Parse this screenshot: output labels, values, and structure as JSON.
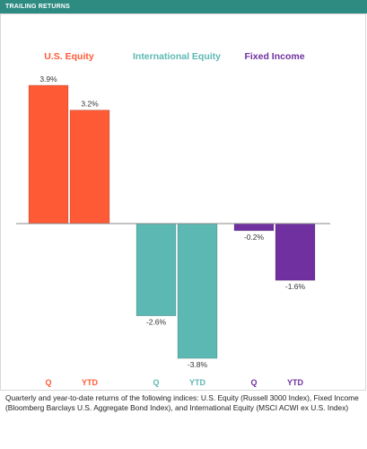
{
  "header": {
    "title": "TRAILING RETURNS"
  },
  "colors": {
    "us_equity": "#ff5a36",
    "international_equity": "#5cb8b2",
    "fixed_income": "#7030a0",
    "header_bg": "#2e8b82",
    "axis": "#888888"
  },
  "chart_data": {
    "type": "bar",
    "groups": [
      {
        "name": "U.S. Equity",
        "color": "#ff5a36",
        "categories": [
          "Q",
          "YTD"
        ],
        "values": [
          3.9,
          3.2
        ],
        "labels": [
          "3.9%",
          "3.2%"
        ]
      },
      {
        "name": "International Equity",
        "color": "#5cb8b2",
        "categories": [
          "Q",
          "YTD"
        ],
        "values": [
          -2.6,
          -3.8
        ],
        "labels": [
          "-2.6%",
          "-3.8%"
        ]
      },
      {
        "name": "Fixed Income",
        "color": "#7030a0",
        "categories": [
          "Q",
          "YTD"
        ],
        "values": [
          -0.2,
          -1.6
        ],
        "labels": [
          "-0.2%",
          "-1.6%"
        ]
      }
    ],
    "ylim": [
      -4.2,
      4.2
    ],
    "grid": false
  },
  "caption": "Quarterly and year-to-date returns of the following indices: U.S. Equity (Russell 3000 Index), Fixed Income (Bloomberg Barclays U.S. Aggregate Bond Index), and International Equity (MSCI ACWI ex U.S. Index)"
}
